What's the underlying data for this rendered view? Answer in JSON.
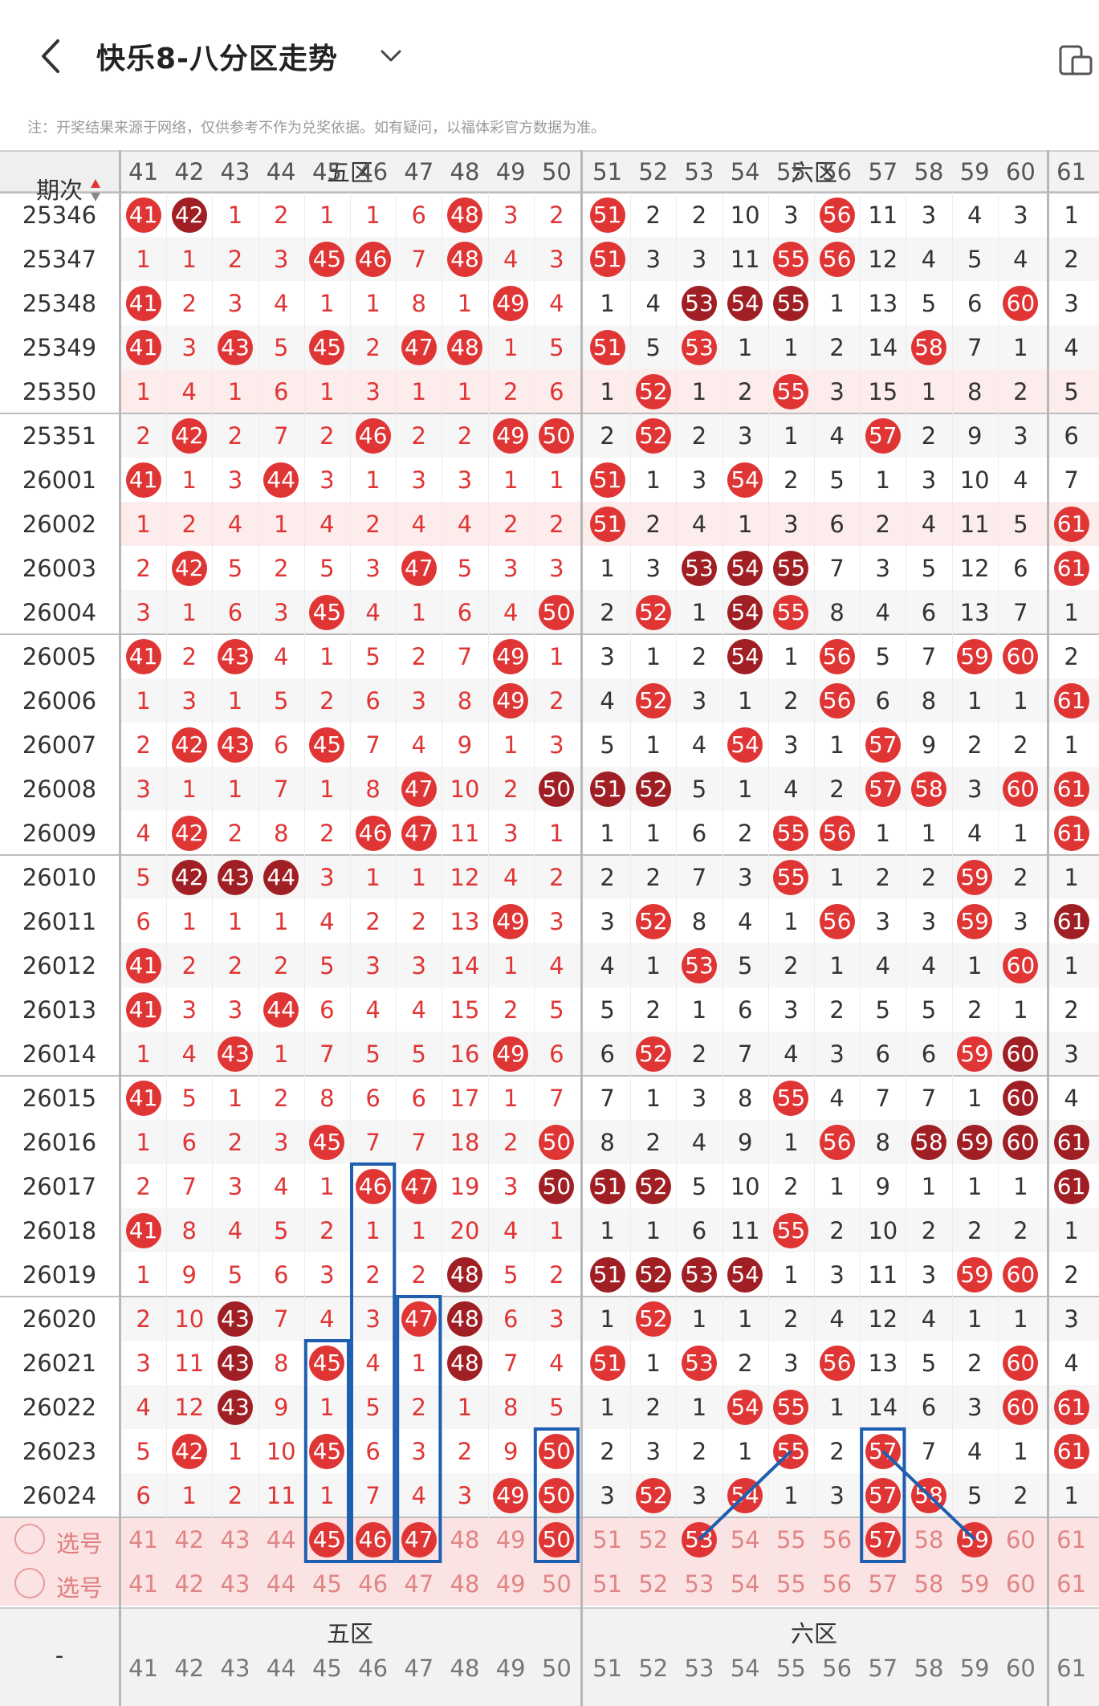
{
  "header": {
    "title": "快乐8-八分区走势",
    "back_icon": "chevron-left-icon",
    "dropdown_icon": "chevron-down-icon",
    "device_icon": "phone-tablet-icon"
  },
  "note": "注：开奖结果来源于网络，仅供参考不作为兑奖依据。如有疑问，以福体彩官方数据为准。",
  "table": {
    "period_label": "期次",
    "zone_labels": [
      "五区",
      "六区"
    ],
    "columns": [
      "41",
      "42",
      "43",
      "44",
      "45",
      "46",
      "47",
      "48",
      "49",
      "50",
      "51",
      "52",
      "53",
      "54",
      "55",
      "56",
      "57",
      "58",
      "59",
      "60",
      "61"
    ],
    "rows": [
      {
        "period": "25346",
        "cells": [
          "41",
          "42",
          "1",
          "2",
          "1",
          "1",
          "6",
          "48",
          "3",
          "2",
          "51",
          "2",
          "2",
          "10",
          "3",
          "56",
          "11",
          "3",
          "4",
          "3",
          "1"
        ],
        "drawn": [
          41,
          42,
          48,
          51,
          56
        ],
        "repeat": [
          42
        ]
      },
      {
        "period": "25347",
        "cells": [
          "1",
          "1",
          "2",
          "3",
          "45",
          "46",
          "7",
          "48",
          "4",
          "3",
          "51",
          "3",
          "3",
          "11",
          "55",
          "56",
          "12",
          "4",
          "5",
          "4",
          "2"
        ],
        "drawn": [
          45,
          46,
          48,
          51,
          55,
          56
        ],
        "repeat": []
      },
      {
        "period": "25348",
        "cells": [
          "41",
          "2",
          "3",
          "4",
          "1",
          "1",
          "8",
          "1",
          "49",
          "4",
          "1",
          "4",
          "53",
          "54",
          "55",
          "1",
          "13",
          "5",
          "6",
          "60",
          "3"
        ],
        "drawn": [
          41,
          49,
          53,
          54,
          55,
          60
        ],
        "repeat": [
          53,
          54,
          55
        ]
      },
      {
        "period": "25349",
        "cells": [
          "41",
          "3",
          "43",
          "5",
          "45",
          "2",
          "47",
          "48",
          "1",
          "5",
          "51",
          "5",
          "53",
          "1",
          "1",
          "2",
          "14",
          "58",
          "7",
          "1",
          "4"
        ],
        "drawn": [
          41,
          43,
          45,
          47,
          48,
          51,
          53,
          58
        ],
        "repeat": []
      },
      {
        "period": "25350",
        "cells": [
          "1",
          "4",
          "1",
          "6",
          "1",
          "3",
          "1",
          "1",
          "2",
          "6",
          "1",
          "52",
          "1",
          "2",
          "55",
          "3",
          "15",
          "1",
          "8",
          "2",
          "5"
        ],
        "drawn": [
          52,
          55
        ],
        "repeat": []
      },
      {
        "period": "25351",
        "cells": [
          "2",
          "42",
          "2",
          "7",
          "2",
          "46",
          "2",
          "2",
          "49",
          "50",
          "2",
          "52",
          "2",
          "3",
          "1",
          "4",
          "57",
          "2",
          "9",
          "3",
          "6"
        ],
        "drawn": [
          42,
          46,
          49,
          50,
          52,
          57
        ],
        "repeat": []
      },
      {
        "period": "26001",
        "cells": [
          "41",
          "1",
          "3",
          "44",
          "3",
          "1",
          "3",
          "3",
          "1",
          "1",
          "51",
          "1",
          "3",
          "54",
          "2",
          "5",
          "1",
          "3",
          "10",
          "4",
          "7"
        ],
        "drawn": [
          41,
          44,
          51,
          54
        ],
        "repeat": []
      },
      {
        "period": "26002",
        "cells": [
          "1",
          "2",
          "4",
          "1",
          "4",
          "2",
          "4",
          "4",
          "2",
          "2",
          "51",
          "2",
          "4",
          "1",
          "3",
          "6",
          "2",
          "4",
          "11",
          "5",
          "61"
        ],
        "drawn": [
          51,
          61
        ],
        "repeat": []
      },
      {
        "period": "26003",
        "cells": [
          "2",
          "42",
          "5",
          "2",
          "5",
          "3",
          "47",
          "5",
          "3",
          "3",
          "1",
          "3",
          "53",
          "54",
          "55",
          "7",
          "3",
          "5",
          "12",
          "6",
          "61"
        ],
        "drawn": [
          42,
          47,
          53,
          54,
          55,
          61
        ],
        "repeat": [
          53,
          54,
          55
        ]
      },
      {
        "period": "26004",
        "cells": [
          "3",
          "1",
          "6",
          "3",
          "45",
          "4",
          "1",
          "6",
          "4",
          "50",
          "2",
          "52",
          "1",
          "54",
          "55",
          "8",
          "4",
          "6",
          "13",
          "7",
          "1"
        ],
        "drawn": [
          45,
          50,
          52,
          54,
          55
        ],
        "repeat": [
          54
        ]
      },
      {
        "period": "26005",
        "cells": [
          "41",
          "2",
          "43",
          "4",
          "1",
          "5",
          "2",
          "7",
          "49",
          "1",
          "3",
          "1",
          "2",
          "54",
          "1",
          "56",
          "5",
          "7",
          "59",
          "60",
          "2"
        ],
        "drawn": [
          41,
          43,
          49,
          54,
          56,
          59,
          60
        ],
        "repeat": [
          54
        ]
      },
      {
        "period": "26006",
        "cells": [
          "1",
          "3",
          "1",
          "5",
          "2",
          "6",
          "3",
          "8",
          "49",
          "2",
          "4",
          "52",
          "3",
          "1",
          "2",
          "56",
          "6",
          "8",
          "1",
          "1",
          "61"
        ],
        "drawn": [
          49,
          52,
          56,
          61
        ],
        "repeat": []
      },
      {
        "period": "26007",
        "cells": [
          "2",
          "42",
          "43",
          "6",
          "45",
          "7",
          "4",
          "9",
          "1",
          "3",
          "5",
          "1",
          "4",
          "54",
          "3",
          "1",
          "57",
          "9",
          "2",
          "2",
          "1"
        ],
        "drawn": [
          42,
          43,
          45,
          54,
          57
        ],
        "repeat": []
      },
      {
        "period": "26008",
        "cells": [
          "3",
          "1",
          "1",
          "7",
          "1",
          "8",
          "47",
          "10",
          "2",
          "50",
          "51",
          "52",
          "5",
          "1",
          "4",
          "2",
          "57",
          "58",
          "3",
          "60",
          "61"
        ],
        "drawn": [
          47,
          50,
          51,
          52,
          57,
          58,
          60,
          61
        ],
        "repeat": [
          50,
          51,
          52
        ]
      },
      {
        "period": "26009",
        "cells": [
          "4",
          "42",
          "2",
          "8",
          "2",
          "46",
          "47",
          "11",
          "3",
          "1",
          "1",
          "1",
          "6",
          "2",
          "55",
          "56",
          "1",
          "1",
          "4",
          "1",
          "61"
        ],
        "drawn": [
          42,
          46,
          47,
          55,
          56,
          61
        ],
        "repeat": []
      },
      {
        "period": "26010",
        "cells": [
          "5",
          "42",
          "43",
          "44",
          "3",
          "1",
          "1",
          "12",
          "4",
          "2",
          "2",
          "2",
          "7",
          "3",
          "55",
          "1",
          "2",
          "2",
          "59",
          "2",
          "1"
        ],
        "drawn": [
          42,
          43,
          44,
          55,
          59
        ],
        "repeat": [
          42,
          43,
          44
        ]
      },
      {
        "period": "26011",
        "cells": [
          "6",
          "1",
          "1",
          "1",
          "4",
          "2",
          "2",
          "13",
          "49",
          "3",
          "3",
          "52",
          "8",
          "4",
          "1",
          "56",
          "3",
          "3",
          "59",
          "3",
          "61"
        ],
        "drawn": [
          49,
          52,
          56,
          59,
          61
        ],
        "repeat": [
          61
        ]
      },
      {
        "period": "26012",
        "cells": [
          "41",
          "2",
          "2",
          "2",
          "5",
          "3",
          "3",
          "14",
          "1",
          "4",
          "4",
          "1",
          "53",
          "5",
          "2",
          "1",
          "4",
          "4",
          "1",
          "60",
          "1"
        ],
        "drawn": [
          41,
          53,
          60
        ],
        "repeat": []
      },
      {
        "period": "26013",
        "cells": [
          "41",
          "3",
          "3",
          "44",
          "6",
          "4",
          "4",
          "15",
          "2",
          "5",
          "5",
          "2",
          "1",
          "6",
          "3",
          "2",
          "5",
          "5",
          "2",
          "1",
          "2"
        ],
        "drawn": [
          41,
          44
        ],
        "repeat": []
      },
      {
        "period": "26014",
        "cells": [
          "1",
          "4",
          "43",
          "1",
          "7",
          "5",
          "5",
          "16",
          "49",
          "6",
          "6",
          "52",
          "2",
          "7",
          "4",
          "3",
          "6",
          "6",
          "59",
          "60",
          "3"
        ],
        "drawn": [
          43,
          49,
          52,
          59,
          60
        ],
        "repeat": [
          60
        ]
      },
      {
        "period": "26015",
        "cells": [
          "41",
          "5",
          "1",
          "2",
          "8",
          "6",
          "6",
          "17",
          "1",
          "7",
          "7",
          "1",
          "3",
          "8",
          "55",
          "4",
          "7",
          "7",
          "1",
          "60",
          "4"
        ],
        "drawn": [
          41,
          55,
          60
        ],
        "repeat": [
          60
        ]
      },
      {
        "period": "26016",
        "cells": [
          "1",
          "6",
          "2",
          "3",
          "45",
          "7",
          "7",
          "18",
          "2",
          "50",
          "8",
          "2",
          "4",
          "9",
          "1",
          "56",
          "8",
          "58",
          "59",
          "60",
          "61"
        ],
        "drawn": [
          45,
          50,
          56,
          58,
          59,
          60,
          61
        ],
        "repeat": [
          58,
          59,
          60,
          61
        ]
      },
      {
        "period": "26017",
        "cells": [
          "2",
          "7",
          "3",
          "4",
          "1",
          "46",
          "47",
          "19",
          "3",
          "50",
          "51",
          "52",
          "5",
          "10",
          "2",
          "1",
          "9",
          "1",
          "1",
          "1",
          "61"
        ],
        "drawn": [
          46,
          47,
          50,
          51,
          52,
          61
        ],
        "repeat": [
          50,
          51,
          52,
          61
        ]
      },
      {
        "period": "26018",
        "cells": [
          "41",
          "8",
          "4",
          "5",
          "2",
          "1",
          "1",
          "20",
          "4",
          "1",
          "1",
          "1",
          "6",
          "11",
          "55",
          "2",
          "10",
          "2",
          "2",
          "2",
          "1"
        ],
        "drawn": [
          41,
          55
        ],
        "repeat": []
      },
      {
        "period": "26019",
        "cells": [
          "1",
          "9",
          "5",
          "6",
          "3",
          "2",
          "2",
          "48",
          "5",
          "2",
          "51",
          "52",
          "53",
          "54",
          "1",
          "3",
          "11",
          "3",
          "59",
          "60",
          "2"
        ],
        "drawn": [
          48,
          51,
          52,
          53,
          54,
          59,
          60
        ],
        "repeat": [
          48,
          51,
          52,
          53,
          54
        ]
      },
      {
        "period": "26020",
        "cells": [
          "2",
          "10",
          "43",
          "7",
          "4",
          "3",
          "47",
          "48",
          "6",
          "3",
          "1",
          "52",
          "1",
          "1",
          "2",
          "4",
          "12",
          "4",
          "1",
          "1",
          "3"
        ],
        "drawn": [
          43,
          47,
          48,
          52
        ],
        "repeat": [
          43,
          48
        ]
      },
      {
        "period": "26021",
        "cells": [
          "3",
          "11",
          "43",
          "8",
          "45",
          "4",
          "1",
          "48",
          "7",
          "4",
          "51",
          "1",
          "53",
          "2",
          "3",
          "56",
          "13",
          "5",
          "2",
          "60",
          "4"
        ],
        "drawn": [
          43,
          45,
          48,
          51,
          53,
          56,
          60
        ],
        "repeat": [
          43,
          48
        ]
      },
      {
        "period": "26022",
        "cells": [
          "4",
          "12",
          "43",
          "9",
          "1",
          "5",
          "2",
          "1",
          "8",
          "5",
          "1",
          "2",
          "1",
          "54",
          "55",
          "1",
          "14",
          "6",
          "3",
          "60",
          "61"
        ],
        "drawn": [
          43,
          54,
          55,
          60,
          61
        ],
        "repeat": [
          43
        ]
      },
      {
        "period": "26023",
        "cells": [
          "5",
          "42",
          "1",
          "10",
          "45",
          "6",
          "3",
          "2",
          "9",
          "50",
          "2",
          "3",
          "2",
          "1",
          "55",
          "2",
          "57",
          "7",
          "4",
          "1",
          "61"
        ],
        "drawn": [
          42,
          45,
          50,
          55,
          57,
          61
        ],
        "repeat": []
      },
      {
        "period": "26024",
        "cells": [
          "6",
          "1",
          "2",
          "11",
          "1",
          "7",
          "4",
          "3",
          "49",
          "50",
          "3",
          "52",
          "3",
          "54",
          "1",
          "3",
          "57",
          "58",
          "5",
          "2",
          "1"
        ],
        "drawn": [
          49,
          50,
          52,
          54,
          57,
          58
        ],
        "repeat": []
      }
    ],
    "select_rows": [
      {
        "label": "选号",
        "picked": [
          45,
          46,
          47,
          50,
          53,
          57,
          59
        ]
      },
      {
        "label": "选号",
        "picked": []
      }
    ]
  },
  "colors": {
    "ball_red": "#e03535",
    "ball_dark": "#a01f24",
    "select_text": "#e08585",
    "line_blue": "#1f5fb0"
  }
}
